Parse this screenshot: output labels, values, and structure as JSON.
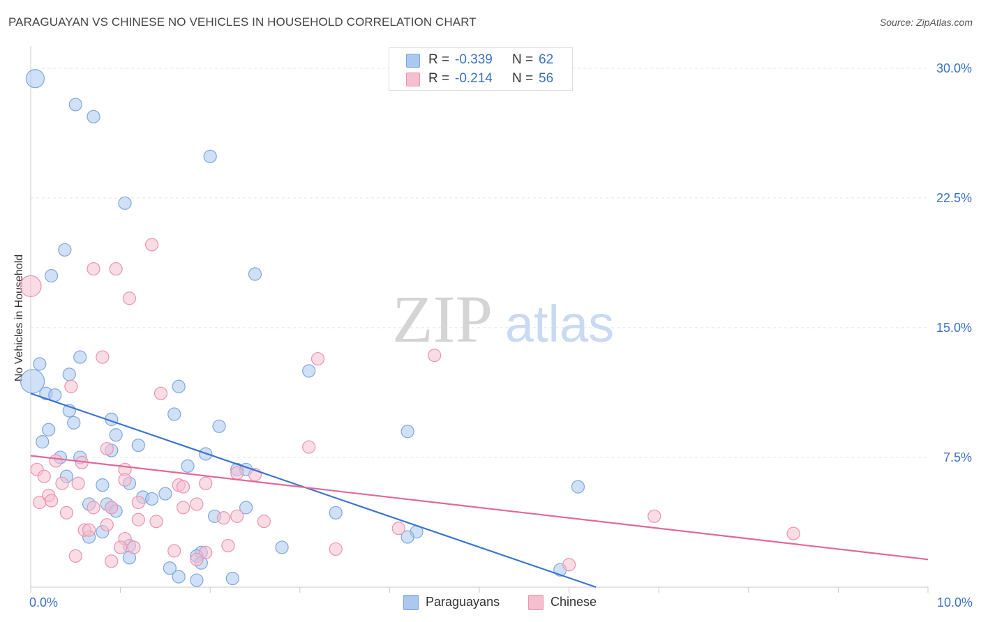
{
  "header": {
    "title": "PARAGUAYAN VS CHINESE NO VEHICLES IN HOUSEHOLD CORRELATION CHART",
    "source": "Source: ZipAtlas.com"
  },
  "watermark": {
    "part1": "ZIP",
    "part2": "atlas"
  },
  "stats": {
    "row1": {
      "r_label": "R =",
      "r_value": "-0.339",
      "n_label": "N =",
      "n_value": "62"
    },
    "row2": {
      "r_label": "R =",
      "r_value": "-0.214",
      "n_label": "N =",
      "n_value": "56"
    }
  },
  "legend": {
    "item1": "Paraguayans",
    "item2": "Chinese"
  },
  "colors": {
    "blue_fill": "#aac8f0",
    "blue_stroke": "#7ea6dc",
    "blue_line": "#3a74d0",
    "pink_fill": "#f6bfd0",
    "pink_stroke": "#ec93b0",
    "pink_line": "#e0689a",
    "tick_text": "#3a72c4",
    "grid": "#e4e4e4"
  },
  "chart_data": {
    "type": "scatter",
    "title": "PARAGUAYAN VS CHINESE NO VEHICLES IN HOUSEHOLD CORRELATION CHART",
    "xlabel": "",
    "ylabel": "No Vehicles in Household",
    "xlim": [
      0,
      10
    ],
    "ylim": [
      0,
      30.8
    ],
    "x_tick_labels": [
      {
        "value": 0,
        "label": "0.0%"
      },
      {
        "value": 10,
        "label": "10.0%"
      }
    ],
    "y_tick_labels": [
      {
        "value": 7.5,
        "label": "7.5%"
      },
      {
        "value": 15,
        "label": "15.0%"
      },
      {
        "value": 22.5,
        "label": "22.5%"
      },
      {
        "value": 30,
        "label": "30.0%"
      }
    ],
    "grid": true,
    "legend_position": "bottom-center",
    "series": [
      {
        "name": "Paraguayans",
        "trend": [
          [
            0,
            11.2
          ],
          [
            6.3,
            0
          ]
        ],
        "points": [
          [
            0.05,
            29.4,
            13
          ],
          [
            0.5,
            27.9,
            9
          ],
          [
            0.7,
            27.2,
            9
          ],
          [
            2.0,
            24.9,
            9
          ],
          [
            1.05,
            22.2,
            9
          ],
          [
            0.38,
            19.5,
            9
          ],
          [
            0.23,
            18.0,
            9
          ],
          [
            2.5,
            18.1,
            9
          ],
          [
            0.02,
            11.9,
            17
          ],
          [
            0.1,
            12.9,
            9
          ],
          [
            0.17,
            11.2,
            9
          ],
          [
            0.27,
            11.1,
            9
          ],
          [
            0.43,
            12.3,
            9
          ],
          [
            0.55,
            13.3,
            9
          ],
          [
            1.65,
            11.6,
            9
          ],
          [
            3.1,
            12.5,
            9
          ],
          [
            0.43,
            10.2,
            9
          ],
          [
            0.48,
            9.5,
            9
          ],
          [
            0.2,
            9.1,
            9
          ],
          [
            0.13,
            8.4,
            9
          ],
          [
            0.9,
            9.7,
            9
          ],
          [
            1.6,
            10.0,
            9
          ],
          [
            2.1,
            9.3,
            9
          ],
          [
            4.2,
            9.0,
            9
          ],
          [
            0.95,
            8.8,
            9
          ],
          [
            0.9,
            7.9,
            9
          ],
          [
            1.2,
            8.2,
            9
          ],
          [
            1.95,
            7.7,
            9
          ],
          [
            0.33,
            7.5,
            9
          ],
          [
            0.55,
            7.5,
            9
          ],
          [
            1.75,
            7.0,
            9
          ],
          [
            2.3,
            6.8,
            9
          ],
          [
            2.4,
            6.8,
            9
          ],
          [
            0.4,
            6.4,
            9
          ],
          [
            0.8,
            5.9,
            9
          ],
          [
            1.1,
            6.0,
            9
          ],
          [
            1.5,
            5.4,
            9
          ],
          [
            1.25,
            5.2,
            9
          ],
          [
            1.35,
            5.1,
            9
          ],
          [
            6.1,
            5.8,
            9
          ],
          [
            0.65,
            4.8,
            9
          ],
          [
            0.85,
            4.8,
            9
          ],
          [
            0.9,
            4.6,
            9
          ],
          [
            0.95,
            4.4,
            9
          ],
          [
            2.4,
            4.6,
            9
          ],
          [
            2.05,
            4.1,
            9
          ],
          [
            3.4,
            4.3,
            9
          ],
          [
            0.8,
            3.2,
            9
          ],
          [
            0.65,
            2.9,
            9
          ],
          [
            4.3,
            3.2,
            9
          ],
          [
            4.2,
            2.9,
            9
          ],
          [
            1.1,
            2.4,
            9
          ],
          [
            2.8,
            2.3,
            9
          ],
          [
            1.9,
            2.0,
            9
          ],
          [
            1.85,
            1.8,
            9
          ],
          [
            1.1,
            1.7,
            9
          ],
          [
            1.55,
            1.1,
            9
          ],
          [
            1.9,
            1.4,
            9
          ],
          [
            1.65,
            0.6,
            9
          ],
          [
            1.85,
            0.4,
            9
          ],
          [
            2.25,
            0.5,
            9
          ],
          [
            5.9,
            1.0,
            9
          ]
        ]
      },
      {
        "name": "Chinese",
        "trend": [
          [
            0,
            7.6
          ],
          [
            10,
            1.6
          ]
        ],
        "points": [
          [
            0.0,
            17.4,
            15
          ],
          [
            1.35,
            19.8,
            9
          ],
          [
            0.7,
            18.4,
            9
          ],
          [
            0.95,
            18.4,
            9
          ],
          [
            1.1,
            16.7,
            9
          ],
          [
            0.8,
            13.3,
            9
          ],
          [
            3.2,
            13.2,
            9
          ],
          [
            4.5,
            13.4,
            9
          ],
          [
            0.45,
            11.6,
            9
          ],
          [
            1.45,
            11.2,
            9
          ],
          [
            0.85,
            8.0,
            9
          ],
          [
            3.1,
            8.1,
            9
          ],
          [
            0.28,
            7.3,
            9
          ],
          [
            0.57,
            7.2,
            9
          ],
          [
            0.07,
            6.8,
            9
          ],
          [
            0.15,
            6.4,
            9
          ],
          [
            1.05,
            6.8,
            9
          ],
          [
            1.05,
            6.2,
            9
          ],
          [
            0.35,
            6.0,
            9
          ],
          [
            0.53,
            6.0,
            9
          ],
          [
            1.65,
            5.9,
            9
          ],
          [
            1.7,
            5.8,
            9
          ],
          [
            1.95,
            6.0,
            9
          ],
          [
            2.3,
            6.6,
            9
          ],
          [
            2.5,
            6.5,
            9
          ],
          [
            0.1,
            4.9,
            9
          ],
          [
            0.2,
            5.3,
            9
          ],
          [
            0.23,
            5.0,
            9
          ],
          [
            0.7,
            4.6,
            9
          ],
          [
            0.9,
            4.6,
            9
          ],
          [
            1.2,
            4.9,
            9
          ],
          [
            1.7,
            4.6,
            9
          ],
          [
            1.85,
            4.8,
            9
          ],
          [
            0.4,
            4.3,
            9
          ],
          [
            0.85,
            3.6,
            9
          ],
          [
            1.2,
            3.9,
            9
          ],
          [
            1.4,
            3.8,
            9
          ],
          [
            2.15,
            4.0,
            9
          ],
          [
            2.3,
            4.1,
            9
          ],
          [
            2.6,
            3.8,
            9
          ],
          [
            6.95,
            4.1,
            9
          ],
          [
            0.6,
            3.3,
            9
          ],
          [
            0.65,
            3.3,
            9
          ],
          [
            1.05,
            2.8,
            9
          ],
          [
            1.15,
            2.3,
            9
          ],
          [
            1.0,
            2.3,
            9
          ],
          [
            1.6,
            2.1,
            9
          ],
          [
            1.95,
            2.0,
            9
          ],
          [
            2.2,
            2.4,
            9
          ],
          [
            3.4,
            2.2,
            9
          ],
          [
            4.1,
            3.4,
            9
          ],
          [
            8.5,
            3.1,
            9
          ],
          [
            0.5,
            1.8,
            9
          ],
          [
            0.9,
            1.5,
            9
          ],
          [
            1.85,
            1.6,
            9
          ],
          [
            6.0,
            1.3,
            9
          ]
        ]
      }
    ]
  }
}
